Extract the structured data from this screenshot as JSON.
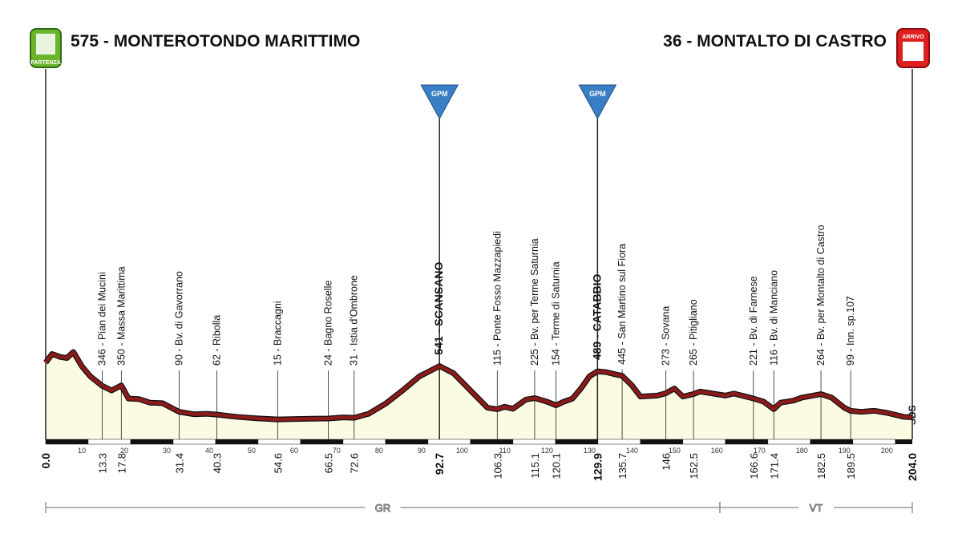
{
  "chart_data": {
    "type": "area",
    "start": {
      "label": "575 - MONTEROTONDO MARITTIMO",
      "icon": "PARTENZA"
    },
    "finish": {
      "label": "36 -  MONTALTO DI CASTRO",
      "icon": "ARRIVO"
    },
    "x": [
      0,
      1.5,
      3.5,
      5,
      6.5,
      8.5,
      10.5,
      13.3,
      15.5,
      17.8,
      19.5,
      22,
      24.5,
      27.5,
      31.4,
      35,
      38,
      40.3,
      45,
      50,
      54.6,
      60,
      66.5,
      70,
      72.6,
      76,
      80,
      84,
      88,
      92.7,
      96,
      100,
      104,
      106.3,
      108,
      110,
      113,
      115.1,
      118,
      120.1,
      122,
      124,
      126,
      128,
      129.9,
      132,
      134,
      135.7,
      138,
      140,
      144,
      146,
      148,
      150,
      152.5,
      154,
      157,
      160,
      162,
      166.6,
      169,
      171.4,
      173,
      176,
      178,
      182.5,
      185,
      188,
      189.5,
      192,
      195,
      198,
      202,
      204
    ],
    "values": [
      575,
      660,
      630,
      620,
      680,
      540,
      440,
      346,
      300,
      350,
      220,
      215,
      180,
      175,
      90,
      65,
      70,
      62,
      40,
      25,
      15,
      20,
      24,
      35,
      31,
      70,
      170,
      300,
      440,
      541,
      470,
      300,
      130,
      115,
      140,
      120,
      210,
      225,
      190,
      154,
      190,
      220,
      320,
      440,
      489,
      480,
      460,
      445,
      350,
      240,
      250,
      273,
      320,
      240,
      265,
      290,
      270,
      250,
      270,
      221,
      190,
      116,
      180,
      200,
      230,
      264,
      230,
      130,
      99,
      90,
      100,
      80,
      40,
      36
    ],
    "color": "#8b1a1a",
    "xlim": [
      0,
      204
    ],
    "xticks": [
      10,
      20,
      30,
      40,
      50,
      60,
      70,
      80,
      90,
      100,
      110,
      120,
      130,
      140,
      150,
      160,
      170,
      180,
      190,
      200
    ],
    "waypoints": [
      {
        "km": {
          "value": 0,
          "label": "0.0"
        }
      },
      {
        "km": 13.3,
        "label": "346 - Pian dei Mucini"
      },
      {
        "km": 17.8,
        "label": "350 - Massa Marittima"
      },
      {
        "km": 31.4,
        "label": "90 - Bv. di Gavorrano"
      },
      {
        "km": 40.3,
        "label": "62 - Ribolla"
      },
      {
        "km": 54.6,
        "label": "15 - Braccagni"
      },
      {
        "km": 66.5,
        "label": "24 - Bagno Roselle"
      },
      {
        "km": 72.6,
        "label": "31 - Istia d'Ombrone"
      },
      {
        "km": 92.7,
        "label": "541 - SCANSANO",
        "kom": "GPM"
      },
      {
        "km": 106.3,
        "label": "115 - Ponte Fosso Mazzapiedi"
      },
      {
        "km": 115.1,
        "label": "225 - Bv. per Terme Saturnia"
      },
      {
        "km": 120.1,
        "label": "154 - Terme di Saturnia"
      },
      {
        "km": 129.9,
        "label": "489 - CATABBIO",
        "kom": "GPM"
      },
      {
        "km": 135.7,
        "label": "445 - San Martino sul Fiora"
      },
      {
        "km": 146.0,
        "label": "273 - Sovana"
      },
      {
        "km": 152.5,
        "label": "265 - Pitigliano"
      },
      {
        "km": 166.6,
        "label": "221 - Bv. di Farnese"
      },
      {
        "km": 171.4,
        "label": "116 - Bv. di Manciano"
      },
      {
        "km": 182.5,
        "label": "264 - Bv. per Montalto di Castro"
      },
      {
        "km": 189.5,
        "label": "99 - Inn. sp.107"
      },
      {
        "km": {
          "value": 204,
          "label": "204.0"
        }
      }
    ],
    "finish_note": "SDS",
    "regions": [
      {
        "label": "GR",
        "from": 0,
        "to": 158.7
      },
      {
        "label": "VT",
        "from": 158.7,
        "to": 204
      }
    ]
  }
}
